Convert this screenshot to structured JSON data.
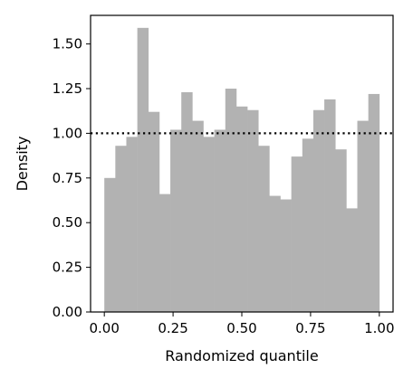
{
  "chart_data": {
    "type": "bar",
    "subtype": "histogram",
    "xlabel": "Randomized quantile",
    "ylabel": "Density",
    "xlim": [
      -0.05,
      1.05
    ],
    "ylim": [
      0,
      1.66
    ],
    "x_ticks": [
      0.0,
      0.25,
      0.5,
      0.75,
      1.0
    ],
    "x_tick_labels": [
      "0.00",
      "0.25",
      "0.50",
      "0.75",
      "1.00"
    ],
    "y_ticks": [
      0.0,
      0.25,
      0.5,
      0.75,
      1.0,
      1.25,
      1.5
    ],
    "y_tick_labels": [
      "0.00",
      "0.25",
      "0.50",
      "0.75",
      "1.00",
      "1.25",
      "1.50"
    ],
    "bin_edges": [
      0.0,
      0.04,
      0.08,
      0.12,
      0.16,
      0.2,
      0.24,
      0.28,
      0.32,
      0.36,
      0.4,
      0.44,
      0.48,
      0.52,
      0.56,
      0.6,
      0.64,
      0.68,
      0.72,
      0.76,
      0.8,
      0.84,
      0.88,
      0.92,
      0.96,
      1.0
    ],
    "values": [
      0.75,
      0.93,
      0.98,
      1.59,
      1.12,
      0.66,
      1.02,
      1.23,
      1.07,
      0.98,
      1.02,
      1.25,
      1.15,
      1.13,
      0.93,
      0.65,
      0.63,
      0.87,
      0.97,
      1.13,
      1.19,
      0.91,
      0.58,
      1.07,
      1.22
    ],
    "reference_line": {
      "y": 1.0,
      "style": "dotted",
      "color": "#000000"
    },
    "bar_color": "#b2b2b2",
    "grid": false,
    "legend": false
  }
}
